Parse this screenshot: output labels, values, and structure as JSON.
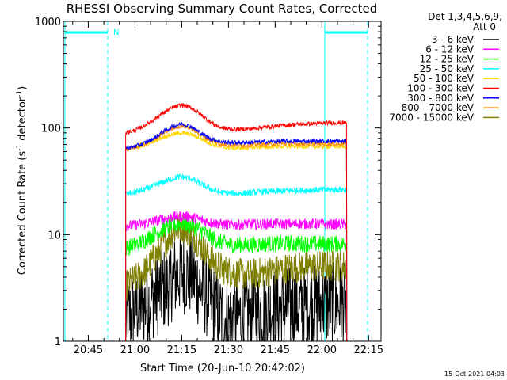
{
  "chart_data": {
    "type": "line",
    "title": "RHESSI Observing Summary Count Rates, Corrected",
    "xlabel": "Start Time (20-Jun-10 20:42:02)",
    "ylabel": "Corrected Count Rate (s",
    "ylabel_sup1": "-1",
    "ylabel_mid": " detector",
    "ylabel_sup2": "-1",
    "ylabel_end": ")",
    "yscale": "log",
    "ylim": [
      1,
      1000
    ],
    "xlim_minutes_after_2042": [
      -5,
      97
    ],
    "x_ticks": [
      {
        "label": "20:45",
        "m": 3
      },
      {
        "label": "21:00",
        "m": 18
      },
      {
        "label": "21:15",
        "m": 33
      },
      {
        "label": "21:30",
        "m": 48
      },
      {
        "label": "21:45",
        "m": 63
      },
      {
        "label": "22:00",
        "m": 78
      },
      {
        "label": "22:15",
        "m": 93
      }
    ],
    "y_ticks": [
      {
        "label": "1",
        "v": 1
      },
      {
        "label": "10",
        "v": 10
      },
      {
        "label": "100",
        "v": 100
      },
      {
        "label": "1000",
        "v": 1000
      }
    ],
    "legend_header": [
      "Det 1,3,4,5,6,9,",
      "Att 0"
    ],
    "timestamp": "15-Oct-2021 04:03",
    "night_marker_label": "N",
    "series": [
      {
        "name": "3 - 6 keV",
        "color": "#000000",
        "x": [
          15,
          18,
          21,
          24,
          27,
          30,
          33,
          36,
          39,
          42,
          45,
          48,
          51,
          54,
          57,
          60,
          63,
          66,
          69,
          72,
          75,
          78,
          81,
          84,
          86
        ],
        "y": [
          1.5,
          2,
          2.2,
          2.6,
          3,
          3.8,
          4.5,
          4.2,
          3.2,
          2.4,
          1.8,
          1.6,
          1.7,
          1.8,
          1.9,
          2,
          2,
          2,
          2.1,
          2.1,
          2.1,
          2.2,
          2.2,
          2.2,
          2.2
        ]
      },
      {
        "name": "6 - 12 keV",
        "color": "#ff00ff",
        "x": [
          15,
          18,
          21,
          24,
          27,
          30,
          33,
          36,
          39,
          42,
          45,
          48,
          51,
          54,
          57,
          60,
          63,
          66,
          69,
          72,
          75,
          78,
          81,
          84,
          86
        ],
        "y": [
          12,
          12.3,
          12.7,
          13.3,
          14,
          14.6,
          15,
          14.6,
          13.8,
          13,
          12.6,
          12.4,
          12.4,
          12.5,
          12.5,
          12.6,
          12.6,
          12.6,
          12.6,
          12.6,
          12.6,
          12.6,
          12.5,
          12.5,
          12.5
        ]
      },
      {
        "name": "12 - 25 keV",
        "color": "#00ff00",
        "x": [
          15,
          18,
          21,
          24,
          27,
          30,
          33,
          36,
          39,
          42,
          45,
          48,
          51,
          54,
          57,
          60,
          63,
          66,
          69,
          72,
          75,
          78,
          81,
          84,
          86
        ],
        "y": [
          7.5,
          8,
          8.8,
          10,
          11.2,
          12.2,
          12.8,
          12.2,
          11,
          9.6,
          8.6,
          8.1,
          8,
          8,
          8.1,
          8.2,
          8.2,
          8.2,
          8.2,
          8.2,
          8.2,
          8.2,
          8.2,
          8.2,
          8.2
        ]
      },
      {
        "name": "25 - 50 keV",
        "color": "#00ffff",
        "x": [
          15,
          18,
          21,
          24,
          27,
          30,
          33,
          36,
          39,
          42,
          45,
          48,
          51,
          54,
          57,
          60,
          63,
          66,
          69,
          72,
          75,
          78,
          81,
          84,
          86
        ],
        "y": [
          24,
          25,
          26.5,
          28.5,
          31,
          33.5,
          35,
          33.5,
          30,
          27,
          25,
          24.5,
          24.3,
          24.5,
          25,
          25.3,
          25.5,
          25.8,
          26,
          26,
          26.2,
          26.3,
          26.3,
          26.4,
          26.5
        ]
      },
      {
        "name": "50 - 100 keV",
        "color": "#ffd700",
        "x": [
          15,
          18,
          21,
          24,
          27,
          30,
          33,
          36,
          39,
          42,
          45,
          48,
          51,
          54,
          57,
          60,
          63,
          66,
          69,
          72,
          75,
          78,
          81,
          84,
          86
        ],
        "y": [
          63,
          65,
          69,
          75,
          82,
          87,
          90,
          87,
          80,
          72,
          67,
          65,
          65,
          65,
          66,
          66,
          67,
          67,
          67,
          67,
          67,
          67,
          67,
          67,
          67
        ]
      },
      {
        "name": "100 - 300 keV",
        "color": "#ff0000",
        "x": [
          15,
          18,
          21,
          24,
          27,
          30,
          33,
          36,
          39,
          42,
          45,
          48,
          51,
          54,
          57,
          60,
          63,
          66,
          69,
          72,
          75,
          78,
          81,
          84,
          86
        ],
        "y": [
          90,
          95,
          105,
          120,
          138,
          155,
          165,
          155,
          135,
          115,
          102,
          98,
          97,
          98,
          100,
          102,
          104,
          106,
          108,
          109,
          110,
          111,
          112,
          112,
          112
        ]
      },
      {
        "name": "300 - 800 keV",
        "color": "#0000ff",
        "x": [
          15,
          18,
          21,
          24,
          27,
          30,
          33,
          36,
          39,
          42,
          45,
          48,
          51,
          54,
          57,
          60,
          63,
          66,
          69,
          72,
          75,
          78,
          81,
          84,
          86
        ],
        "y": [
          65,
          67,
          72,
          80,
          92,
          103,
          110,
          103,
          90,
          80,
          75,
          73,
          73,
          73,
          74,
          74,
          75,
          75,
          75,
          75,
          75,
          75,
          75,
          75,
          75
        ]
      },
      {
        "name": "800 - 7000 keV",
        "color": "#ff8c00",
        "x": [
          15,
          18,
          21,
          24,
          27,
          30,
          33,
          36,
          39,
          42,
          45,
          48,
          51,
          54,
          57,
          60,
          63,
          66,
          69,
          72,
          75,
          78,
          81,
          84,
          86
        ],
        "y": [
          63,
          66,
          70,
          78,
          89,
          99,
          105,
          99,
          87,
          77,
          71,
          69,
          69,
          69,
          70,
          70,
          71,
          71,
          71,
          71,
          71,
          71,
          71,
          71,
          71
        ]
      },
      {
        "name": "7000 - 15000 keV",
        "color": "#808000",
        "x": [
          15,
          18,
          21,
          24,
          27,
          30,
          33,
          36,
          39,
          42,
          45,
          48,
          51,
          54,
          57,
          60,
          63,
          66,
          69,
          72,
          75,
          78,
          81,
          84,
          86
        ],
        "y": [
          3.3,
          3.8,
          4.5,
          6,
          8,
          10.5,
          12,
          10.5,
          8,
          6,
          5,
          4.5,
          4.3,
          4.2,
          4.3,
          4.5,
          4.6,
          4.8,
          4.9,
          5,
          5,
          5.1,
          5.1,
          5.1,
          5.1
        ]
      }
    ]
  }
}
